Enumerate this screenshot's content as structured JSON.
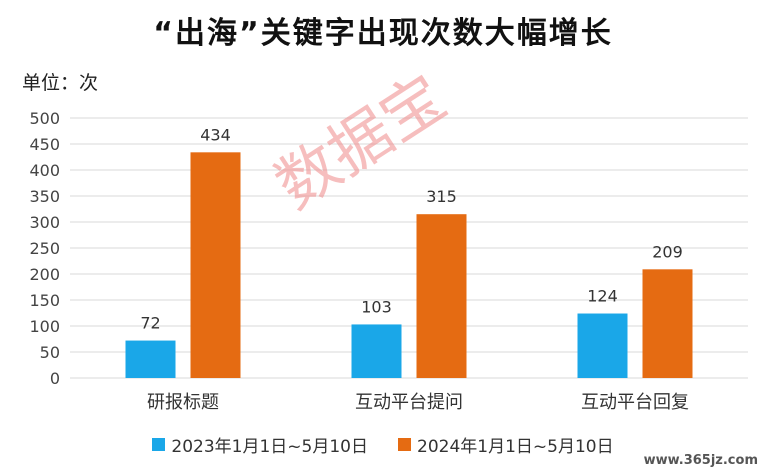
{
  "chart_data": {
    "type": "bar",
    "title": "“出海”关键字出现次数大幅增长",
    "unit": "单位：次",
    "categories": [
      "研报标题",
      "互动平台提问",
      "互动平台回复"
    ],
    "series": [
      {
        "name": "2023年1月1日~5月10日",
        "values": [
          72,
          103,
          124
        ],
        "color": "#1aa7e8"
      },
      {
        "name": "2024年1月1日~5月10日",
        "values": [
          434,
          315,
          209
        ],
        "color": "#e56b12"
      }
    ],
    "ylim": [
      0,
      500
    ],
    "yticks": [
      "0",
      "50",
      "100",
      "150",
      "200",
      "250",
      "300",
      "350",
      "400",
      "450",
      "500"
    ],
    "grid": true,
    "legend": "bottom"
  },
  "watermark": "数据宝",
  "site": "www.365jz.com"
}
